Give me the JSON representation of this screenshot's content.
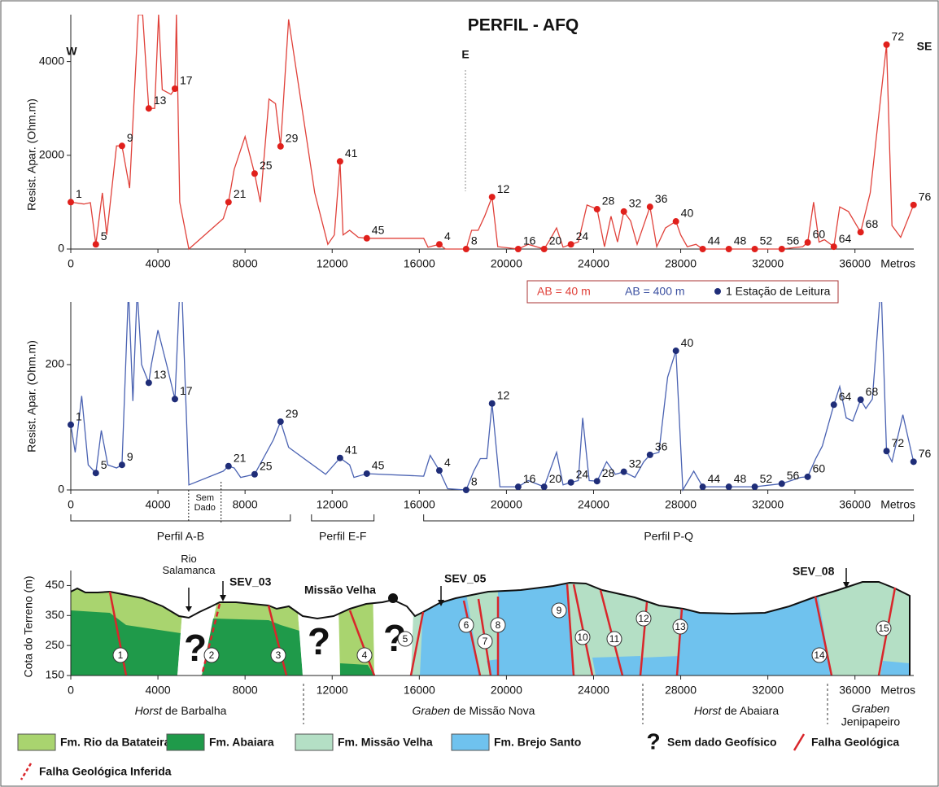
{
  "title": "PERFIL - AFQ",
  "chart_data": [
    {
      "type": "line",
      "y_label": "Resist. Apar. (Ohm.m)",
      "x_unit": "Metros",
      "annotations": [
        "W",
        "E",
        "SE"
      ],
      "xlim": [
        0,
        38700
      ],
      "ylim": [
        0,
        5000
      ],
      "xticks": [
        0,
        4000,
        8000,
        12000,
        16000,
        20000,
        24000,
        28000,
        32000,
        36000
      ],
      "yticks": [
        0,
        2000,
        4000
      ],
      "grid": false,
      "series": [
        {
          "name": "AB = 40 m",
          "color": "#e0413a",
          "x": [
            0,
            600,
            900,
            1150,
            1450,
            1650,
            2100,
            2350,
            2700,
            3100,
            3300,
            3580,
            3850,
            4030,
            4200,
            4600,
            4780,
            4850,
            5000,
            5420,
            7000,
            7240,
            7500,
            8000,
            8440,
            8700,
            9100,
            9400,
            9630,
            10000,
            11200,
            11800,
            12100,
            12360,
            12500,
            12800,
            13200,
            13590,
            16200,
            16400,
            16920,
            17200,
            18150,
            18400,
            18700,
            19000,
            19340,
            19600,
            20540,
            21000,
            21730,
            22000,
            22300,
            22600,
            22960,
            23300,
            23700,
            24160,
            24500,
            24800,
            25100,
            25390,
            25700,
            26000,
            26590,
            26900,
            27300,
            27780,
            28000,
            28300,
            28700,
            29010,
            30210,
            31400,
            32640,
            33600,
            33830,
            34100,
            34350,
            34600,
            35030,
            35300,
            35700,
            36260,
            36700,
            37450,
            37700,
            38100,
            38690
          ],
          "values": [
            1000,
            960,
            990,
            100,
            1200,
            300,
            2200,
            2200,
            1300,
            5000,
            5000,
            3000,
            3000,
            5000,
            3400,
            3300,
            3420,
            5000,
            1000,
            0,
            650,
            1000,
            1700,
            2400,
            1610,
            1000,
            3200,
            3100,
            2190,
            4900,
            1200,
            100,
            300,
            1870,
            300,
            400,
            250,
            230,
            230,
            40,
            100,
            0,
            0,
            400,
            400,
            700,
            1110,
            50,
            0,
            100,
            0,
            200,
            450,
            40,
            100,
            150,
            940,
            850,
            50,
            700,
            150,
            800,
            600,
            100,
            900,
            50,
            450,
            590,
            300,
            50,
            100,
            0,
            0,
            0,
            0,
            50,
            140,
            1000,
            150,
            200,
            50,
            900,
            800,
            360,
            1200,
            4360,
            500,
            250,
            940
          ]
        }
      ],
      "stations": {
        "color": "#e0201c",
        "labels": [
          "1",
          "5",
          "9",
          "13",
          "17",
          "21",
          "25",
          "29",
          "41",
          "45",
          "4",
          "8",
          "12",
          "16",
          "20",
          "24",
          "28",
          "32",
          "36",
          "40",
          "44",
          "48",
          "52",
          "56",
          "60",
          "64",
          "68",
          "72",
          "76"
        ],
        "x": [
          0,
          1150,
          2350,
          3580,
          4780,
          7240,
          8440,
          9630,
          12360,
          13590,
          16920,
          18150,
          19340,
          20540,
          21730,
          22960,
          24160,
          25390,
          26590,
          27780,
          29010,
          30210,
          31400,
          32640,
          33830,
          35030,
          36260,
          37450,
          38690
        ],
        "values": [
          1000,
          100,
          2200,
          3000,
          3420,
          1000,
          1610,
          2190,
          1870,
          230,
          100,
          0,
          1110,
          0,
          0,
          100,
          850,
          800,
          900,
          590,
          0,
          0,
          0,
          0,
          140,
          50,
          360,
          4360,
          940
        ]
      }
    },
    {
      "type": "line",
      "y_label": "Resist. Apar. (Ohm.m)",
      "x_unit": "Metros",
      "xlim": [
        0,
        38700
      ],
      "ylim": [
        0,
        300
      ],
      "xticks": [
        0,
        4000,
        8000,
        12000,
        16000,
        20000,
        24000,
        28000,
        32000,
        36000
      ],
      "yticks": [
        0,
        200
      ],
      "grid": false,
      "series": [
        {
          "name": "AB = 400 m",
          "color": "#4a62b2",
          "x": [
            0,
            200,
            500,
            800,
            1150,
            1400,
            1700,
            2100,
            2350,
            2650,
            2850,
            3050,
            3250,
            3580,
            3700,
            4000,
            4400,
            4780,
            5000,
            5100,
            5420,
            7000,
            7240,
            7500,
            7800,
            8440,
            9300,
            9630,
            10000,
            11700,
            12360,
            12800,
            13000,
            13590,
            16200,
            16500,
            16920,
            17300,
            18150,
            18500,
            18800,
            19100,
            19340,
            19700,
            20540,
            21000,
            21730,
            22300,
            22600,
            22960,
            23300,
            23500,
            23800,
            24160,
            24600,
            25000,
            25390,
            25900,
            26300,
            26590,
            27000,
            27400,
            27780,
            28100,
            28600,
            29010,
            30210,
            31400,
            32640,
            33500,
            33830,
            34200,
            34500,
            35030,
            35300,
            35600,
            35900,
            36260,
            36500,
            36800,
            37200,
            37450,
            37700,
            38200,
            38690
          ],
          "values": [
            104,
            60,
            150,
            40,
            27,
            95,
            40,
            35,
            40,
            320,
            142,
            320,
            200,
            171,
            200,
            255,
            200,
            145,
            320,
            320,
            8,
            30,
            38,
            35,
            20,
            25,
            80,
            109,
            68,
            25,
            51,
            40,
            20,
            26,
            22,
            55,
            31,
            2,
            0,
            30,
            50,
            50,
            138,
            5,
            5,
            15,
            5,
            60,
            8,
            12,
            15,
            115,
            15,
            14,
            45,
            25,
            29,
            20,
            45,
            56,
            60,
            180,
            222,
            0,
            30,
            5,
            5,
            5,
            10,
            20,
            21,
            50,
            70,
            136,
            165,
            115,
            110,
            144,
            130,
            145,
            330,
            62,
            45,
            120,
            45
          ]
        }
      ],
      "stations": {
        "color": "#1f2d78",
        "legend": "1 Estação de Leitura",
        "labels": [
          "1",
          "5",
          "9",
          "13",
          "17",
          "21",
          "25",
          "29",
          "41",
          "45",
          "4",
          "8",
          "12",
          "16",
          "20",
          "24",
          "28",
          "32",
          "36",
          "40",
          "44",
          "48",
          "52",
          "56",
          "60",
          "64",
          "68",
          "72",
          "76"
        ],
        "x": [
          0,
          1150,
          2350,
          3580,
          4780,
          7240,
          8440,
          9630,
          12360,
          13590,
          16920,
          18150,
          19340,
          20540,
          21730,
          22960,
          24160,
          25390,
          26590,
          27780,
          29010,
          30210,
          31400,
          32640,
          33830,
          35030,
          36260,
          37450,
          38690
        ],
        "values": [
          104,
          27,
          40,
          171,
          145,
          38,
          25,
          109,
          51,
          26,
          31,
          0,
          138,
          5,
          5,
          12,
          14,
          29,
          56,
          222,
          5,
          5,
          5,
          10,
          21,
          136,
          144,
          62,
          45
        ]
      },
      "profiles": [
        {
          "label": "Perfil A-B",
          "range": [
            0,
            10080
          ]
        },
        {
          "label": "Perfil E-F",
          "range": [
            11050,
            13920
          ]
        },
        {
          "label": "Perfil P-Q",
          "range": [
            16200,
            38690
          ]
        }
      ],
      "gap": {
        "label": "Sem Dado",
        "range": [
          5410,
          6900
        ]
      }
    },
    {
      "type": "section",
      "y_label": "Cota do Terreno (m)",
      "x_unit": "Metros",
      "xlim": [
        0,
        38700
      ],
      "ylim": [
        150,
        500
      ],
      "xticks": [
        0,
        4000,
        8000,
        12000,
        16000,
        20000,
        24000,
        28000,
        32000,
        36000
      ],
      "yticks": [
        150,
        250,
        350,
        450
      ],
      "annotations": [
        "Rio Salamanca",
        "SEV_03",
        "Missão Velha",
        "SEV_05",
        "SEV_08"
      ],
      "faults": [
        "1",
        "2",
        "3",
        "4",
        "5",
        "6",
        "7",
        "8",
        "9",
        "10",
        "11",
        "12",
        "13",
        "14",
        "15"
      ],
      "unknown_symbol": "?",
      "blocks": [
        {
          "italic": "Horst",
          "rest": "de Barbalha"
        },
        {
          "italic": "Graben",
          "rest": "de Missão Nova"
        },
        {
          "italic": "Horst",
          "rest": "de Abaiara"
        },
        {
          "italic": "Graben",
          "rest": "Jenipapeiro"
        }
      ],
      "units": [
        {
          "name": "Fm. Rio da Batateira",
          "color": "#a9d46f"
        },
        {
          "name": "Fm. Abaiara",
          "color": "#1f9a4a"
        },
        {
          "name": "Fm. Missão Velha",
          "color": "#b4dfc5"
        },
        {
          "name": "Fm. Brejo Santo",
          "color": "#6fc2ee"
        }
      ],
      "legend_unknown": "Sem dado Geofísico",
      "legend_fault": "Falha Geológica",
      "legend_fault_inferred": "Falha Geológica Inferida",
      "fault_color": "#d9262b"
    }
  ]
}
